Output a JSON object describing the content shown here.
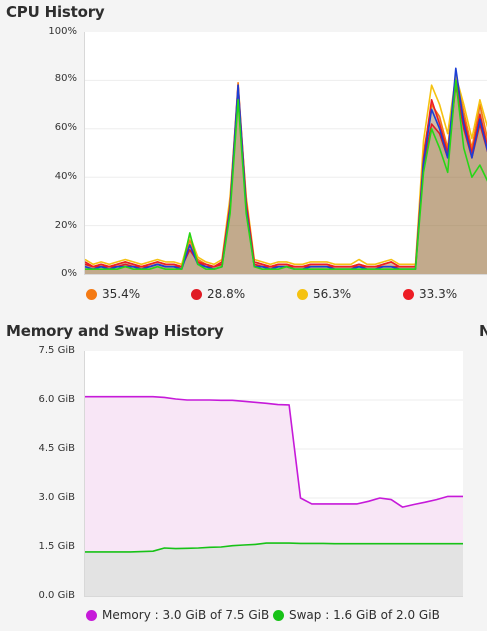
{
  "cpu": {
    "title": "CPU History",
    "y_ticks": [
      "100%",
      "80%",
      "60%",
      "40%",
      "20%",
      "0%"
    ],
    "legend": [
      {
        "label": "35.4%",
        "color": "#f47a14"
      },
      {
        "label": "28.8%",
        "color": "#e01b24"
      },
      {
        "label": "56.3%",
        "color": "#f5c211"
      },
      {
        "label": "33.3%",
        "color": "#ed1c24"
      }
    ]
  },
  "memory": {
    "title": "Memory and Swap History",
    "y_ticks": [
      "7.5 GiB",
      "6.0 GiB",
      "4.5 GiB",
      "3.0 GiB",
      "1.5 GiB",
      "0.0 GiB"
    ],
    "legend": [
      {
        "label": "Memory : 3.0 GiB of 7.5 GiB",
        "color": "#c61ad9"
      },
      {
        "label": "Swap : 1.6 GiB of 2.0 GiB",
        "color": "#17c217"
      }
    ]
  },
  "network_title_fragment": "N",
  "chart_data": [
    {
      "type": "line",
      "title": "CPU History",
      "ylim": [
        0,
        100
      ],
      "y_unit": "%",
      "x": [
        0,
        2,
        4,
        6,
        8,
        10,
        12,
        14,
        16,
        18,
        20,
        22,
        24,
        26,
        28,
        30,
        32,
        34,
        36,
        38,
        40,
        42,
        44,
        46,
        48,
        50,
        52,
        54,
        56,
        58,
        60,
        62,
        64,
        66,
        68,
        70,
        72,
        74,
        76,
        78,
        80,
        82,
        84,
        86,
        88,
        90,
        92,
        94,
        96,
        98,
        100
      ],
      "series": [
        {
          "name": "35.4%",
          "color": "#f47a14",
          "values": [
            5,
            3,
            4,
            3,
            4,
            5,
            4,
            3,
            4,
            5,
            4,
            4,
            3,
            14,
            6,
            4,
            3,
            5,
            30,
            79,
            30,
            5,
            4,
            3,
            4,
            4,
            3,
            3,
            4,
            4,
            4,
            3,
            3,
            3,
            4,
            3,
            3,
            4,
            5,
            3,
            3,
            3,
            50,
            70,
            65,
            52,
            82,
            67,
            52,
            70,
            55
          ]
        },
        {
          "name": "28.8%",
          "color": "#e01b24",
          "values": [
            4,
            3,
            3,
            3,
            3,
            4,
            3,
            3,
            3,
            4,
            3,
            3,
            3,
            10,
            5,
            3,
            3,
            4,
            28,
            75,
            28,
            4,
            3,
            3,
            3,
            3,
            3,
            3,
            3,
            3,
            3,
            3,
            3,
            3,
            3,
            3,
            3,
            3,
            3,
            3,
            3,
            3,
            45,
            62,
            58,
            48,
            78,
            60,
            48,
            62,
            50
          ]
        },
        {
          "name": "56.3%",
          "color": "#f5c211",
          "values": [
            6,
            4,
            5,
            4,
            5,
            6,
            5,
            4,
            5,
            6,
            5,
            5,
            4,
            16,
            7,
            5,
            4,
            6,
            32,
            76,
            32,
            6,
            5,
            4,
            5,
            5,
            4,
            4,
            5,
            5,
            5,
            4,
            4,
            4,
            6,
            4,
            4,
            5,
            6,
            4,
            4,
            4,
            55,
            78,
            70,
            58,
            82,
            70,
            56,
            72,
            60
          ]
        },
        {
          "name": "33.3%",
          "color": "#ed1c24",
          "values": [
            5,
            3,
            4,
            3,
            4,
            5,
            4,
            3,
            4,
            5,
            4,
            4,
            3,
            12,
            5,
            4,
            3,
            5,
            29,
            78,
            30,
            5,
            4,
            3,
            4,
            4,
            3,
            3,
            4,
            4,
            4,
            3,
            3,
            3,
            4,
            3,
            3,
            4,
            5,
            3,
            3,
            3,
            48,
            72,
            62,
            50,
            80,
            64,
            50,
            66,
            52
          ]
        },
        {
          "name": "",
          "color": "#1c3fd6",
          "values": [
            3,
            2,
            3,
            2,
            3,
            3,
            3,
            2,
            3,
            4,
            3,
            3,
            2,
            12,
            4,
            3,
            2,
            3,
            27,
            78,
            27,
            3,
            3,
            2,
            3,
            3,
            2,
            2,
            3,
            3,
            3,
            2,
            2,
            2,
            3,
            2,
            2,
            3,
            3,
            2,
            2,
            2,
            46,
            68,
            60,
            48,
            85,
            62,
            48,
            64,
            50
          ]
        },
        {
          "name": "",
          "color": "#27d617",
          "values": [
            2,
            2,
            2,
            2,
            2,
            3,
            2,
            2,
            2,
            3,
            2,
            2,
            2,
            17,
            4,
            2,
            2,
            3,
            25,
            72,
            25,
            3,
            2,
            2,
            2,
            3,
            2,
            2,
            2,
            2,
            2,
            2,
            2,
            2,
            2,
            2,
            2,
            2,
            2,
            2,
            2,
            2,
            42,
            60,
            52,
            42,
            80,
            52,
            40,
            45,
            38
          ]
        }
      ]
    },
    {
      "type": "area",
      "title": "Memory and Swap History",
      "ylim": [
        0,
        7.5
      ],
      "y_unit": "GiB",
      "x": [
        0,
        3,
        6,
        9,
        12,
        15,
        18,
        21,
        24,
        27,
        30,
        33,
        36,
        39,
        42,
        45,
        48,
        51,
        54,
        57,
        60,
        63,
        66,
        69,
        72,
        75,
        78,
        81,
        84,
        87,
        90,
        93,
        96,
        100
      ],
      "series": [
        {
          "name": "Memory",
          "color": "#c61ad9",
          "values": [
            6.1,
            6.1,
            6.1,
            6.1,
            6.1,
            6.1,
            6.1,
            6.08,
            6.03,
            6.0,
            6.0,
            6.0,
            5.99,
            5.99,
            5.96,
            5.93,
            5.9,
            5.86,
            5.85,
            3.0,
            2.82,
            2.82,
            2.82,
            2.82,
            2.82,
            2.9,
            3.0,
            2.95,
            2.72,
            2.8,
            2.87,
            2.95,
            3.05,
            3.05
          ]
        },
        {
          "name": "Swap",
          "color": "#17c217",
          "values": [
            1.35,
            1.35,
            1.35,
            1.35,
            1.35,
            1.36,
            1.37,
            1.47,
            1.45,
            1.46,
            1.47,
            1.49,
            1.5,
            1.54,
            1.56,
            1.58,
            1.62,
            1.62,
            1.62,
            1.61,
            1.61,
            1.61,
            1.6,
            1.6,
            1.6,
            1.6,
            1.6,
            1.6,
            1.6,
            1.6,
            1.6,
            1.6,
            1.6,
            1.6
          ]
        }
      ]
    }
  ]
}
